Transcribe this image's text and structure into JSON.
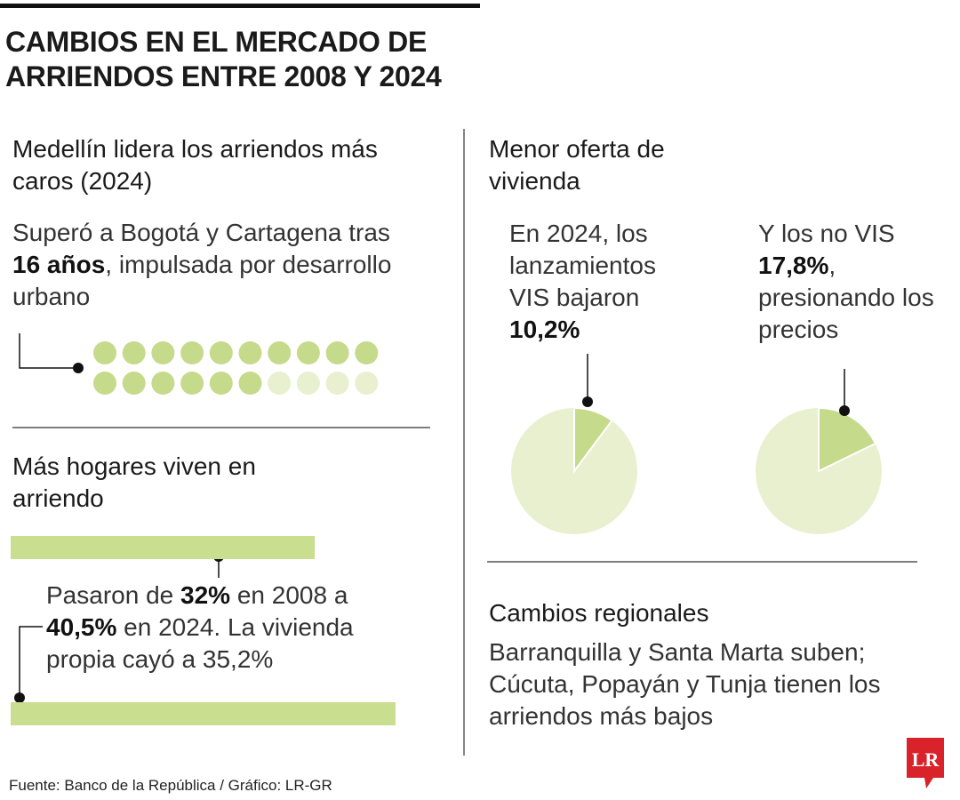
{
  "title": "CAMBIOS EN EL MERCADO DE ARRIENDOS ENTRE 2008 Y 2024",
  "sections": [
    {
      "heading": "Medellín lidera los arriendos más caros (2024)",
      "text": [
        "Superó a Bogotá y Cartagena tras ",
        ", impulsada por desarrollo urbano"
      ]
    },
    {
      "heading": "Más hogares viven en arriendo",
      "text": [
        "Pasaron de ",
        " en 2008 a ",
        " en 2024. La vivienda propia cayó a 35,2%"
      ]
    },
    {
      "heading": "Menor oferta de vivienda",
      "text": [
        "En 2024, los lanzamientos VIS bajaron ",
        "Y los no VIS ",
        ", presionando los precios"
      ]
    },
    {
      "heading": "Cambios regionales",
      "text": [
        "Barranquilla y Santa Marta suben; Cúcuta, Popayán y Tunja tienen los arriendos más bajos"
      ]
    }
  ],
  "source": "Fuente: Banco de la República / Gráfico: LR-GR",
  "logo": "LR",
  "chart_data": [
    {
      "type": "dots",
      "values": [
        16,
        4
      ],
      "value_labels": [
        "16 años"
      ],
      "colors": [
        "#c6da8c",
        "#e9f0cf"
      ]
    },
    {
      "type": "bar",
      "values": [
        32,
        40.5
      ],
      "value_labels": [
        "32%",
        "40,5%"
      ],
      "color": "#c9de8f"
    },
    {
      "type": "pie",
      "values": [
        10.2
      ],
      "value_labels": [
        "10,2%"
      ],
      "color": "#c6da8c",
      "background": "#e9f0cf"
    },
    {
      "type": "pie",
      "values": [
        17.8
      ],
      "value_labels": [
        "17,8%"
      ],
      "color": "#c6da8c",
      "background": "#e9f0cf"
    }
  ]
}
